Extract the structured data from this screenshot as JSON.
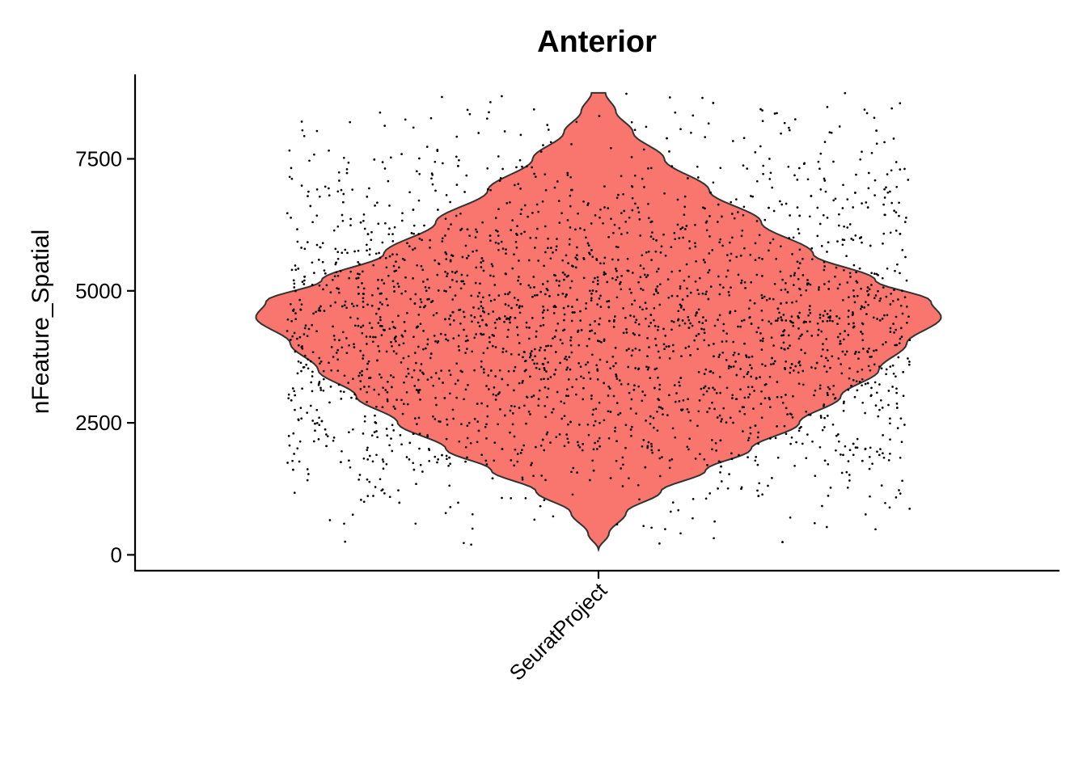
{
  "chart_data": {
    "type": "violin",
    "title": "Anterior",
    "xlabel": "",
    "ylabel": "nFeature_Spatial",
    "categories": [
      "SeuratProject"
    ],
    "ylim": [
      -300,
      9100
    ],
    "yticks": [
      0,
      2500,
      5000,
      7500
    ],
    "grid": false,
    "legend": "none",
    "fill_color": "#F8766D",
    "outline_color": "#333333",
    "point_color": "#000000",
    "violin": {
      "value_range": [
        100,
        8750
      ],
      "density_profile": [
        {
          "value": 100,
          "half_width": 0.0
        },
        {
          "value": 400,
          "half_width": 0.03
        },
        {
          "value": 800,
          "half_width": 0.08
        },
        {
          "value": 1200,
          "half_width": 0.18
        },
        {
          "value": 1600,
          "half_width": 0.31
        },
        {
          "value": 2000,
          "half_width": 0.44
        },
        {
          "value": 2500,
          "half_width": 0.58
        },
        {
          "value": 3000,
          "half_width": 0.7
        },
        {
          "value": 3500,
          "half_width": 0.81
        },
        {
          "value": 4000,
          "half_width": 0.89
        },
        {
          "value": 4500,
          "half_width": 0.99
        },
        {
          "value": 4800,
          "half_width": 0.96
        },
        {
          "value": 5200,
          "half_width": 0.8
        },
        {
          "value": 5700,
          "half_width": 0.62
        },
        {
          "value": 6300,
          "half_width": 0.47
        },
        {
          "value": 6900,
          "half_width": 0.32
        },
        {
          "value": 7500,
          "half_width": 0.19
        },
        {
          "value": 8000,
          "half_width": 0.1
        },
        {
          "value": 8400,
          "half_width": 0.05
        },
        {
          "value": 8750,
          "half_width": 0.02
        }
      ]
    },
    "points": {
      "count": 2695,
      "min": 100,
      "max": 8750,
      "jitter_half_width": 0.9
    }
  }
}
